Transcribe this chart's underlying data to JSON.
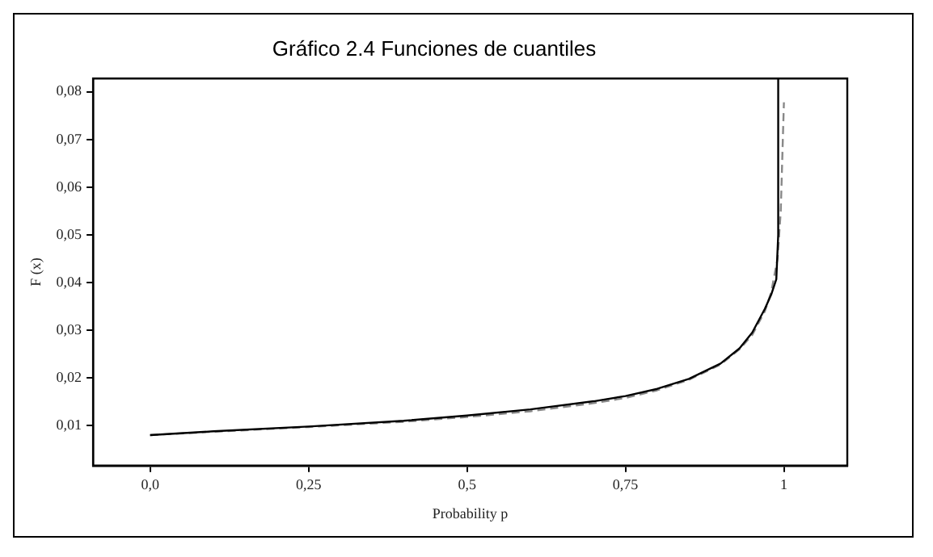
{
  "chart_data": {
    "type": "line",
    "title": "Gráfico 2.4 Funciones de cuantiles",
    "xlabel": "Probability p",
    "ylabel": "F (x)",
    "xlim": [
      -0.09,
      1.1
    ],
    "ylim": [
      0.0016,
      0.0828
    ],
    "xticks": [
      {
        "value": 0,
        "label": "0,0"
      },
      {
        "value": 0.25,
        "label": "0,25"
      },
      {
        "value": 0.5,
        "label": "0,5"
      },
      {
        "value": 0.75,
        "label": "0,75"
      },
      1
    ],
    "yticks": [
      {
        "value": 0.01,
        "label": "0,01"
      },
      {
        "value": 0.02,
        "label": "0,02"
      },
      {
        "value": 0.03,
        "label": "0,03"
      },
      {
        "value": 0.04,
        "label": "0,04"
      },
      {
        "value": 0.05,
        "label": "0,05"
      },
      {
        "value": 0.06,
        "label": "0,06"
      },
      {
        "value": 0.07,
        "label": "0,07"
      },
      {
        "value": 0.08,
        "label": "0,08"
      }
    ],
    "grid": false,
    "legend": false,
    "marker": "none",
    "series": [
      {
        "color": "#000000",
        "line_style": "solid",
        "x": [
          0,
          0.1,
          0.25,
          0.4,
          0.5,
          0.6,
          0.7,
          0.75,
          0.8,
          0.85,
          0.9,
          0.93,
          0.95,
          0.97,
          0.98,
          0.988,
          0.991,
          0.991
        ],
        "values": [
          0.008,
          0.0088,
          0.0098,
          0.011,
          0.0121,
          0.0134,
          0.0151,
          0.0162,
          0.0177,
          0.0198,
          0.023,
          0.0262,
          0.0295,
          0.0345,
          0.0375,
          0.0407,
          0.05,
          0.0828
        ]
      },
      {
        "color": "#888888",
        "line_style": "dashed",
        "x": [
          0,
          0.1,
          0.25,
          0.4,
          0.5,
          0.6,
          0.7,
          0.75,
          0.8,
          0.85,
          0.9,
          0.93,
          0.95,
          0.97,
          0.98,
          0.99,
          0.995,
          1.0
        ],
        "values": [
          0.008,
          0.0087,
          0.0097,
          0.0108,
          0.0118,
          0.013,
          0.0147,
          0.0158,
          0.0174,
          0.0196,
          0.0228,
          0.026,
          0.029,
          0.034,
          0.038,
          0.045,
          0.055,
          0.0778
        ]
      }
    ]
  }
}
